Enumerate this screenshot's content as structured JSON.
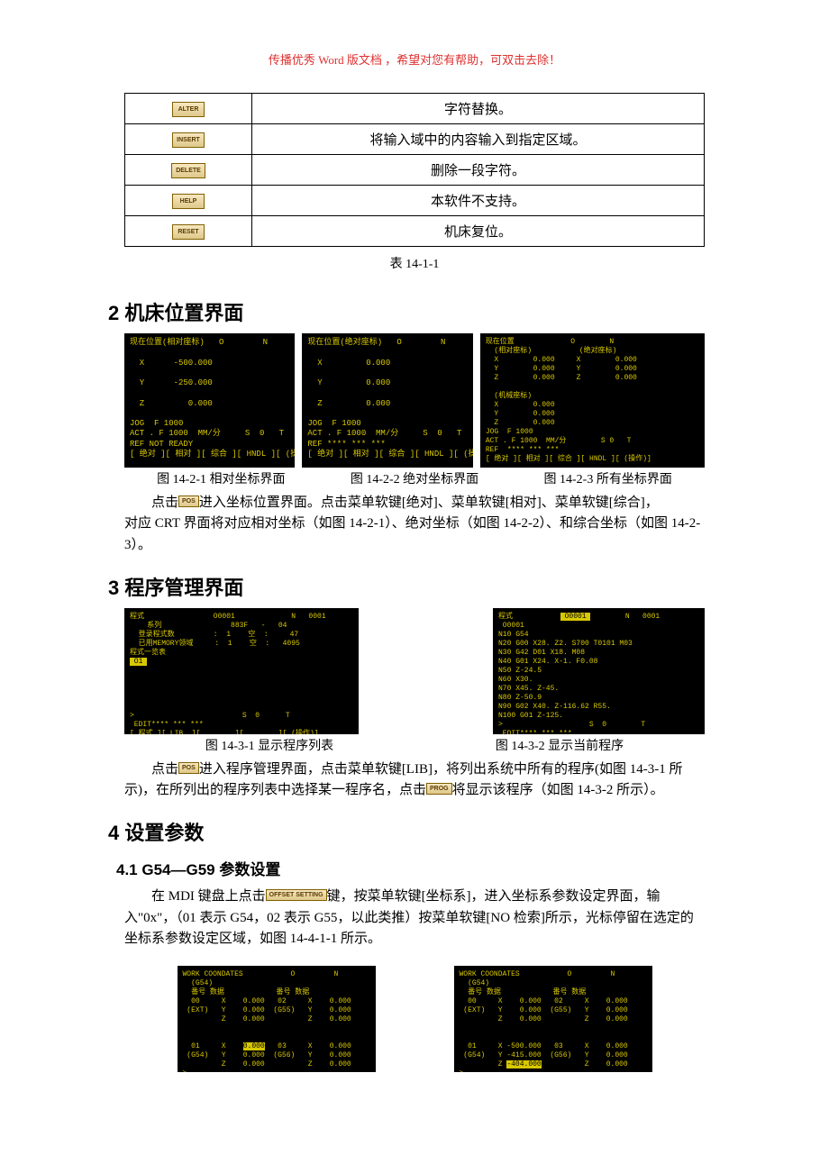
{
  "banner": "传播优秀 Word 版文档 ，希望对您有帮助，可双击去除！",
  "buttonsTable": {
    "rows": [
      {
        "key": "ALTER",
        "desc": "字符替换。"
      },
      {
        "key": "INSERT",
        "desc": "将输入域中的内容输入到指定区域。"
      },
      {
        "key": "DELETE",
        "desc": "删除一段字符。"
      },
      {
        "key": "HELP",
        "desc": "本软件不支持。"
      },
      {
        "key": "RESET",
        "desc": "机床复位。"
      }
    ],
    "caption": "表 14-1-1"
  },
  "sec2": {
    "title": "2 机床位置界面",
    "crt1": "现在位置(相对座标)   O        N\n\n  X      -500.000\n\n  Y      -250.000\n\n  Z         0.000\n\nJOG  F 1000\nACT . F 1000  MM/分     S  0   T\nREF NOT READY\n[ 绝对 ][ 相对 ][ 综合 ][ HNDL ][ (操作)]",
    "crt2": "现在位置(绝对座标)   O        N\n\n  X         0.000\n\n  Y         0.000\n\n  Z         0.000\n\nJOG  F 1000\nACT . F 1000  MM/分     S  0   T\nREF **** *** ***\n[ 绝对 ][ 相对 ][ 综合 ][ HNDL ][ (操作)]",
    "crt3": "现在位置             O        N\n  (相对座标)           (绝对座标)\n  X        0.000     X        0.000\n  Y        0.000     Y        0.000\n  Z        0.000     Z        0.000\n\n  (机械座标)\n  X        0.000\n  Y        0.000\n  Z        0.000\nJOG  F 1000\nACT . F 1000  MM/分        S 0   T\nREF  **** *** ***\n[ 绝对 ][ 相对 ][ 综合 ][ HNDL ][ (操作)]",
    "cap1": "图 14-2-1  相对坐标界面",
    "cap2": "图 14-2-2  绝对坐标界面",
    "cap3": "图 14-2-3  所有坐标界面",
    "para_a": "点击",
    "posBtn": "POS",
    "para_b": "进入坐标位置界面。点击菜单软键[绝对]、菜单软键[相对]、菜单软键[综合]，",
    "para_c": "对应 CRT 界面将对应相对坐标（如图 14-2-1）、绝对坐标（如图 14-2-2）、和综合坐标（如图 14-2-3）。"
  },
  "sec3": {
    "title": "3 程序管理界面",
    "crt1": "程式                O0001             N   0001\n    系列                883F   -   04\n  登录程式数         :  1    空  :     47\n  已用MEMORY领域     :  1    空  :   4095\n程式一览表\n O1 \n\n\n\n\n\n>                         S  0      T\n EDIT**** *** ***\n[ 程式 ][ LIB  ][        ][        ][ (操作)]",
    "crt2": "程式            O0001         N   0001\n O0001 \nN10 G54\nN20 G00 X28. Z2. S700 T0101 M03\nN30 G42 D01 X18. M08\nN40 G01 X24. X-1. F0.08\nN50 Z-24.5\nN60 X30.\nN70 X45. Z-45.\nN80 Z-50.9\nN90 G02 X40. Z-116.62 R55.\nN100 G01 Z-125.\n>                    S  0        T\n EDIT**** *** ***\n[ 程式 ][ LIB  ][       ][ 综合 ][ (操作)]",
    "cap1": "图 14-3-1 显示程序列表",
    "cap2": "图  14-3-2 显示当前程序",
    "para_a": "点击",
    "posBtn": "POS",
    "para_b": "进入程序管理界面，点击菜单软键[LIB]，将列出系统中所有的程序(如图 14-3-1 所示)，在所列出的程序列表中选择某一程序名，点击",
    "progBtn": "PROG",
    "para_c": "将显示该程序（如图 14-3-2 所示）。"
  },
  "sec4": {
    "title": "4 设置参数",
    "sub1": "4.1 G54—G59 参数设置",
    "para_a": "在 MDI 键盘上点击",
    "offsetBtn": "OFFSET SETTING",
    "para_b": "键，按菜单软键[坐标系]，进入坐标系参数设定界面，输入\"0x\"，（01 表示 G54，02 表示 G55，以此类推）按菜单软键[NO 检索]所示，光标停留在选定的坐标系参数设定区域，如图 14-4-1-1 所示。",
    "crt1": "WORK COONDATES           O         N\n  (G54)\n  番号 数据            番号 数据\n  00     X    0.000   02     X    0.000\n (EXT)   Y    0.000  (G55)   Y    0.000\n         Z    0.000          Z    0.000\n\n\n  01     X    0.000   03     X    0.000\n (G54)   Y    0.000  (G56)   Y    0.000\n         Z    0.000          Z    0.000\n>\n EDIT**** *** ***",
    "crt1_inv": "0.000",
    "crt2": "WORK COONDATES           O         N\n  (G54)\n  番号 数据            番号 数据\n  00     X    0.000   02     X    0.000\n (EXT)   Y    0.000  (G55)   Y    0.000\n         Z    0.000          Z    0.000\n\n\n  01     X -500.000   03     X    0.000\n (G54)   Y -415.000  (G56)   Y    0.000\n         Z -404.000          Z    0.000\n>\n EDIT**** *** ***",
    "crt2_inv": "-404.000"
  }
}
